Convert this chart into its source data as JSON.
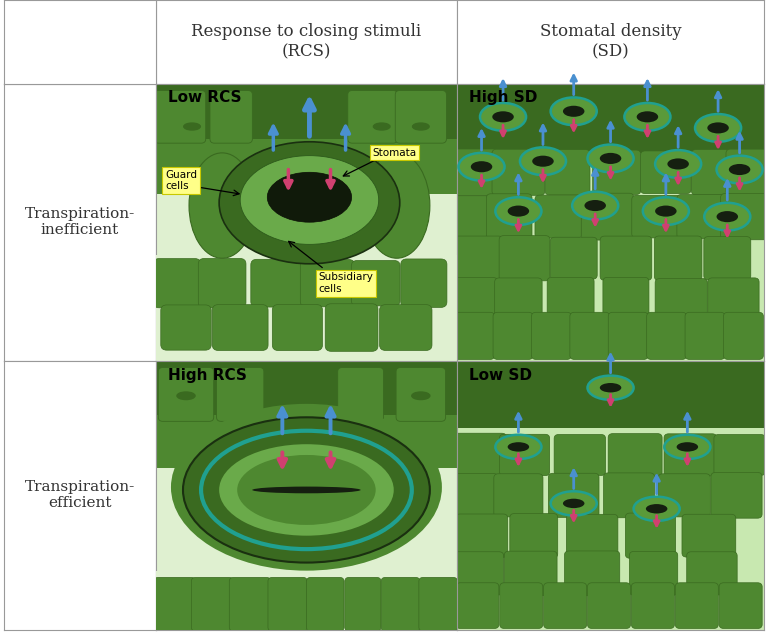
{
  "col_headers": [
    "Response to closing stimuli\n(RCS)",
    "Stomatal density\n(SD)"
  ],
  "row_headers": [
    "Transpiration-\ninefficient",
    "Transpiration-\nefficient"
  ],
  "bg_color": "#ffffff",
  "cell_bg": "#e8f5e8",
  "grid_color": "#999999",
  "dark_green": "#2d5a1b",
  "mid_green": "#4a7c35",
  "light_green": "#6aaa4a",
  "lighter_green": "#8fcc6f",
  "pale_green": "#c8e8b0",
  "very_light_green": "#dff0d0",
  "leaf_surface": "#5a9a3a",
  "leaf_dark": "#3a6a20",
  "leaf_mid": "#4e8830",
  "cell_highlight": "#70b050",
  "teal_ring": "#20a090",
  "dark_pore": "#151f10",
  "guard_dark": "#2a4a1a",
  "guard_light": "#5a9040",
  "arrow_blue": "#4a90d0",
  "arrow_pink": "#d04070",
  "label_yellow": "#ffff88",
  "label_border": "#c8c800",
  "text_color": "#333333",
  "header_fontsize": 12,
  "row_label_fontsize": 11
}
